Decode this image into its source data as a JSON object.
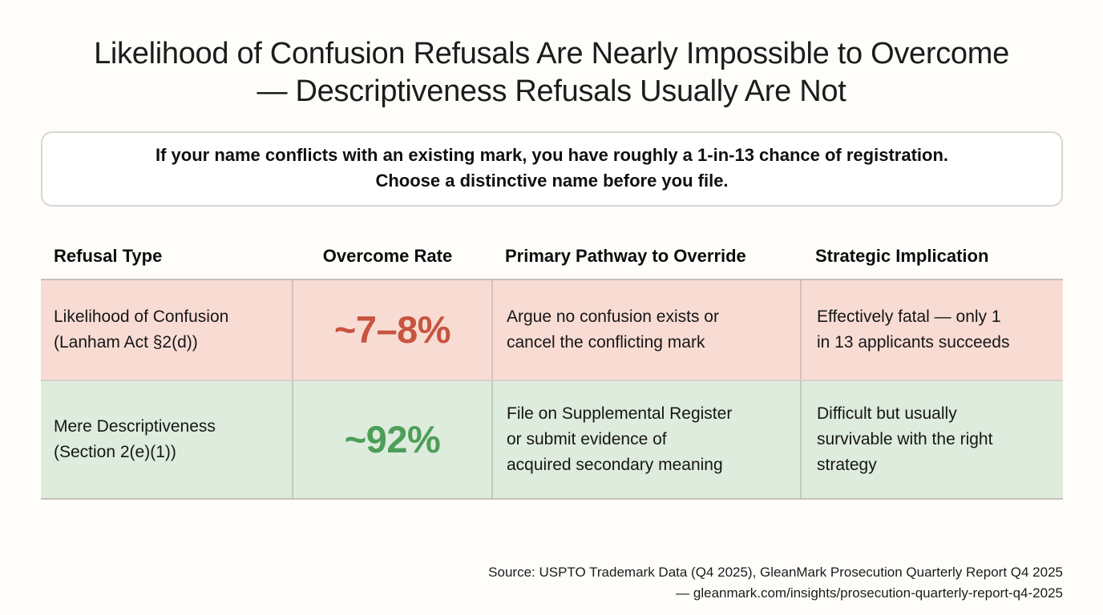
{
  "title": {
    "text": "Likelihood of Confusion Refusals Are Nearly Impossible to Overcome\n— Descriptiveness Refusals Usually Are Not"
  },
  "callout": {
    "text": "If your name conflicts with an existing mark, you have roughly a 1-in-13 chance of registration.\nChoose a distinctive name before you file."
  },
  "table": {
    "headers": [
      "Refusal Type",
      "Overcome Rate",
      "Primary Pathway to Override",
      "Strategic Implication"
    ],
    "rows": [
      {
        "refusal_type": "Likelihood of Confusion\n(Lanham Act §2(d))",
        "overcome_rate": "~7–8%",
        "pathway": "Argue no confusion exists or\ncancel the conflicting mark",
        "implication": "Effectively fatal — only 1\nin 13 applicants succeeds"
      },
      {
        "refusal_type": "Mere Descriptiveness\n(Section 2(e)(1))",
        "overcome_rate": "~92%",
        "pathway": "File on Supplemental Register\nor submit evidence of\nacquired secondary meaning",
        "implication": "Difficult but usually\nsurvivable with the right\nstrategy"
      }
    ]
  },
  "source": {
    "text": "Source: USPTO Trademark Data (Q4 2025), GleanMark Prosecution Quarterly Report Q4 2025\n— gleanmark.com/insights/prosecution-quarterly-report-q4-2025"
  },
  "colors": {
    "page_background": "#fffdfa",
    "danger_row_bg": "#f8dcd4",
    "danger_accent": "#c75440",
    "success_row_bg": "#deecdd",
    "success_accent": "#4d9e58"
  }
}
